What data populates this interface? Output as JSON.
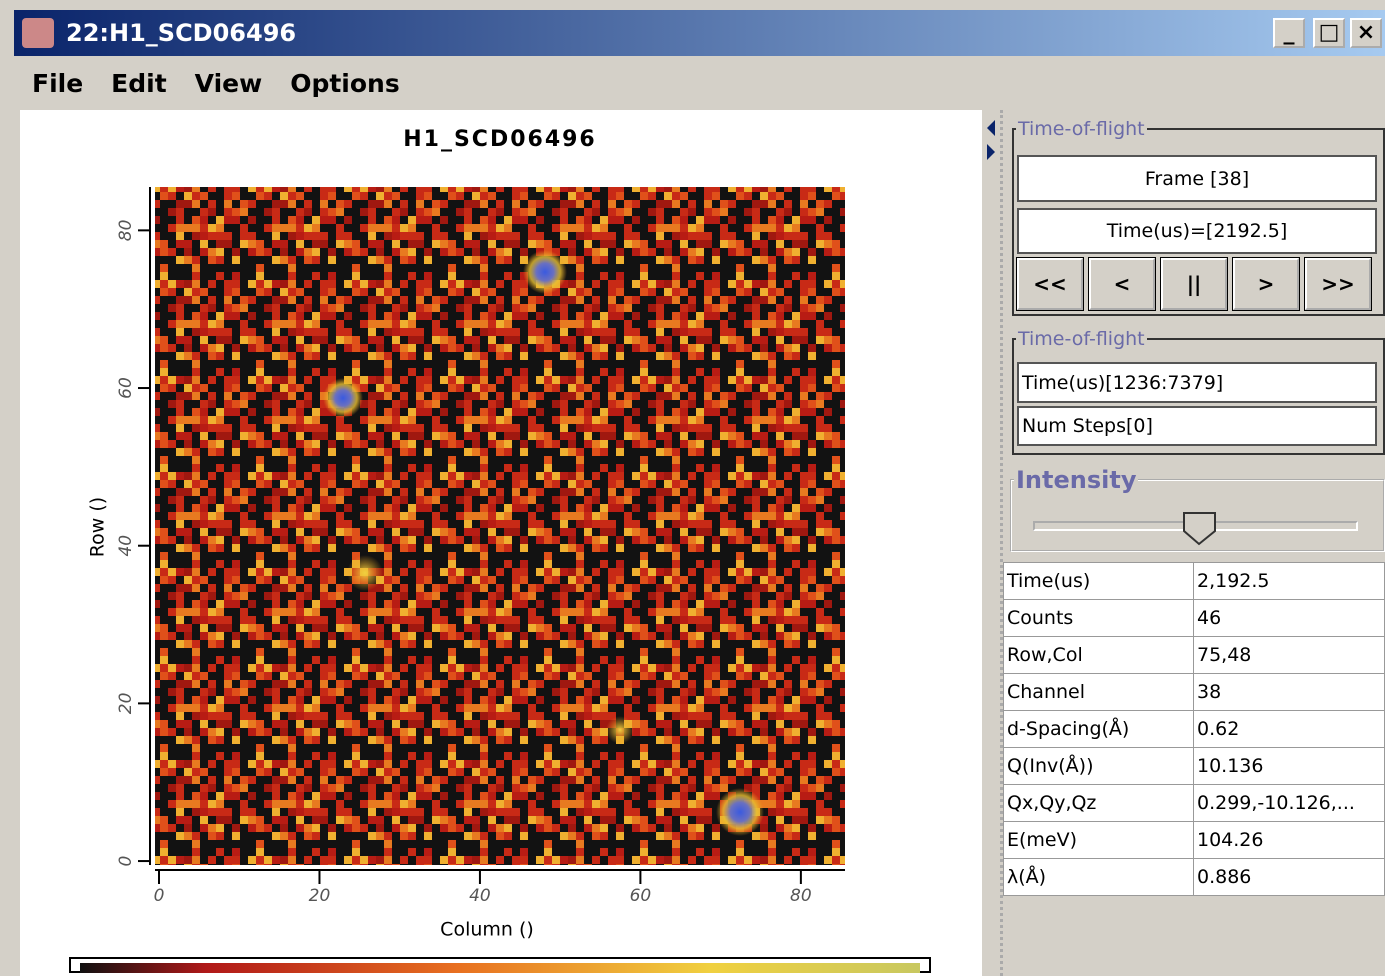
{
  "window": {
    "title": "22:H1_SCD06496",
    "menu": [
      "File",
      "Edit",
      "View",
      "Options"
    ]
  },
  "chart_data": {
    "type": "heatmap",
    "title": "H1_SCD06496",
    "x_label": "Column ()",
    "y_label": "Row ()",
    "xlim": [
      -0.5,
      85.5
    ],
    "ylim": [
      -0.5,
      85.5
    ],
    "xticks": [
      0,
      20,
      40,
      60,
      80
    ],
    "yticks": [
      0,
      20,
      40,
      60,
      80
    ]
  },
  "panel": {
    "time_of_flight": {
      "legend": "Time-of-flight",
      "frame": "Frame [38]",
      "time": "Time(us)=[2192.5]",
      "buttons": [
        "<<",
        "<",
        "||",
        ">",
        ">>"
      ]
    },
    "time_range": {
      "legend": "Time-of-flight",
      "range": "Time(us)[1236:7379]",
      "steps": "Num Steps[0]"
    },
    "intensity": {
      "legend": "Intensity"
    },
    "table": {
      "rows": [
        [
          "Time(us)",
          "2,192.5"
        ],
        [
          "Counts",
          "46"
        ],
        [
          "Row,Col",
          "75,48"
        ],
        [
          "Channel",
          "38"
        ],
        [
          "d-Spacing(Å)",
          "0.62"
        ],
        [
          "Q(Inv(Å))",
          "10.136"
        ],
        [
          "Qx,Qy,Qz",
          "0.299,-10.126,..."
        ],
        [
          "E(meV)",
          "104.26"
        ],
        [
          "λ(Å)",
          "0.886"
        ]
      ]
    }
  }
}
